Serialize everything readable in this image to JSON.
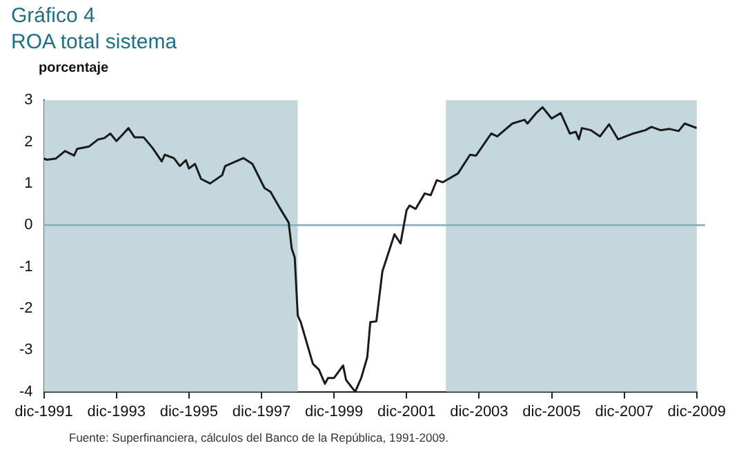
{
  "chart_data": {
    "type": "line",
    "title": "Gráfico 4",
    "subtitle": "ROA total sistema",
    "ylabel": "porcentaje",
    "annotations": [
      "Fuente: Superfinanciera, cálculos del Banco de la República, 1991-2009."
    ],
    "x": [
      "1991-12",
      "1992-01",
      "1992-04",
      "1992-07",
      "1992-10",
      "1992-11",
      "1993-03",
      "1993-06",
      "1993-08",
      "1993-10",
      "1993-12",
      "1994-02",
      "1994-04",
      "1994-06",
      "1994-09",
      "1994-12",
      "1995-03",
      "1995-04",
      "1995-07",
      "1995-09",
      "1995-11",
      "1995-12",
      "1996-02",
      "1996-04",
      "1996-07",
      "1996-11",
      "1996-12",
      "1997-06",
      "1997-09",
      "1998-01",
      "1998-03",
      "1998-06",
      "1998-09",
      "1998-10",
      "1998-11",
      "1998-12",
      "1999-01",
      "1999-05",
      "1999-07",
      "1999-09",
      "1999-10",
      "1999-12",
      "2000-03",
      "2000-04",
      "2000-07",
      "2000-09",
      "2000-11",
      "2000-12",
      "2001-02",
      "2001-04",
      "2001-08",
      "2001-10",
      "2001-12",
      "2002-01",
      "2002-03",
      "2002-06",
      "2002-08",
      "2002-10",
      "2002-12",
      "2003-05",
      "2003-09",
      "2003-11",
      "2004-04",
      "2004-06",
      "2004-11",
      "2005-03",
      "2005-04",
      "2005-07",
      "2005-09",
      "2005-12",
      "2006-03",
      "2006-06",
      "2006-08",
      "2006-09",
      "2006-10",
      "2007-01",
      "2007-04",
      "2007-07",
      "2007-10",
      "2008-03",
      "2008-07",
      "2008-09",
      "2008-12",
      "2009-03",
      "2009-06",
      "2009-08",
      "2009-12"
    ],
    "series": [
      {
        "color": "#1a1a1a",
        "values": [
          1.6,
          1.57,
          1.6,
          1.78,
          1.67,
          1.83,
          1.89,
          2.06,
          2.09,
          2.2,
          2.02,
          2.17,
          2.33,
          2.11,
          2.11,
          1.85,
          1.53,
          1.69,
          1.61,
          1.42,
          1.56,
          1.36,
          1.47,
          1.11,
          1.0,
          1.2,
          1.42,
          1.61,
          1.47,
          0.89,
          0.8,
          0.42,
          0.06,
          -0.56,
          -0.78,
          -2.17,
          -2.33,
          -3.33,
          -3.47,
          -3.81,
          -3.67,
          -3.67,
          -3.37,
          -3.72,
          -4.0,
          -3.67,
          -3.17,
          -2.33,
          -2.31,
          -1.11,
          -0.22,
          -0.44,
          0.36,
          0.47,
          0.39,
          0.76,
          0.72,
          1.08,
          1.03,
          1.24,
          1.69,
          1.67,
          2.2,
          2.13,
          2.44,
          2.53,
          2.44,
          2.7,
          2.83,
          2.56,
          2.69,
          2.2,
          2.24,
          2.06,
          2.33,
          2.28,
          2.13,
          2.42,
          2.06,
          2.2,
          2.28,
          2.36,
          2.28,
          2.31,
          2.26,
          2.44,
          2.33
        ]
      }
    ],
    "xlim": [
      "1991-12",
      "2009-12"
    ],
    "xticks": [
      {
        "value": "1991-12",
        "label": "dic-1991"
      },
      {
        "value": "1993-12",
        "label": "dic-1993"
      },
      {
        "value": "1995-12",
        "label": "dic-1995"
      },
      {
        "value": "1997-12",
        "label": "dic-1997"
      },
      {
        "value": "1999-12",
        "label": "dic-1999"
      },
      {
        "value": "2001-12",
        "label": "dic-2001"
      },
      {
        "value": "2003-12",
        "label": "dic-2003"
      },
      {
        "value": "2005-12",
        "label": "dic-2005"
      },
      {
        "value": "2007-12",
        "label": "dic-2007"
      },
      {
        "value": "2009-12",
        "label": "dic-2009"
      }
    ],
    "ylim": [
      -4,
      3
    ],
    "yticks": [
      -4,
      -3,
      -2,
      -1,
      0,
      1,
      2,
      3
    ],
    "bands": [
      {
        "axis": "x",
        "from": "1991-12",
        "to": "1998-12",
        "color": "#c3d7dc"
      },
      {
        "axis": "x",
        "from": "2003-01",
        "to": "2009-12",
        "color": "#c3d7dc"
      }
    ],
    "ref_lines": [
      {
        "axis": "y",
        "value": 0,
        "color": "#7fb0ba"
      }
    ],
    "grid": false,
    "legend": false,
    "marker": "none",
    "line_style": "solid"
  }
}
